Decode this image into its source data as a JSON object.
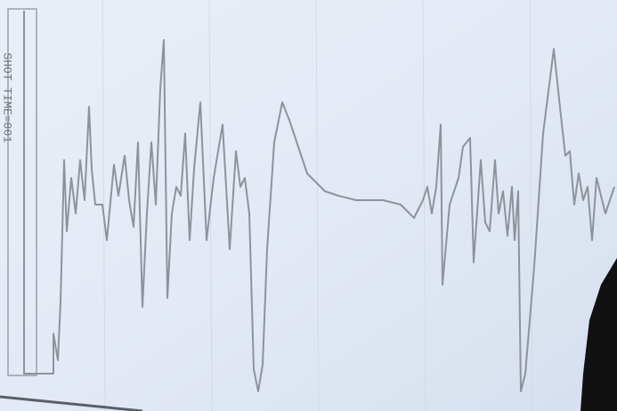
{
  "label": "SHOT TIME=001"
}
